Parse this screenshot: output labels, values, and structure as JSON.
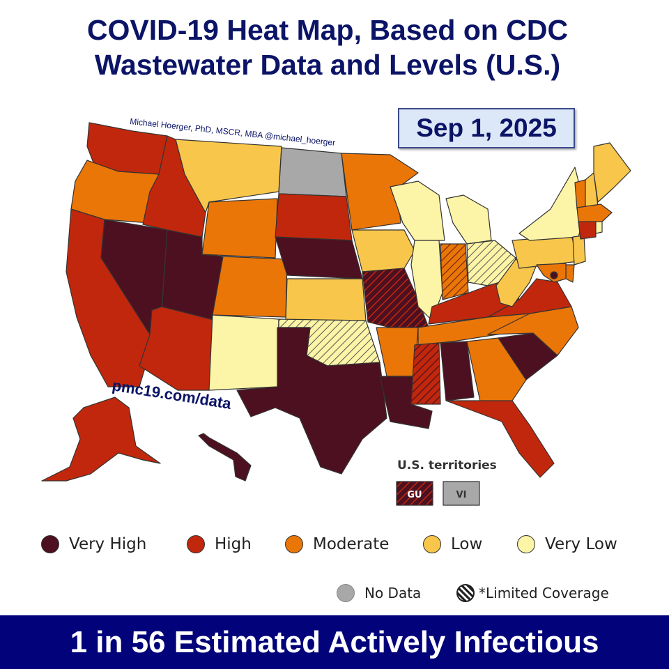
{
  "title_line1": "COVID-19 Heat Map, Based on CDC",
  "title_line2": "Wastewater Data and Levels (U.S.)",
  "date": "Sep 1, 2025",
  "credit": "Michael Hoerger, PhD, MSCR, MBA  @michael_hoerger",
  "website": "pmc19.com/data",
  "territories_label": "U.S. territories",
  "territories": [
    {
      "code": "GU",
      "level": "very_high",
      "limited": true
    },
    {
      "code": "VI",
      "level": "no_data",
      "limited": false
    }
  ],
  "legend": [
    {
      "label": "Very High",
      "color": "#4d1020"
    },
    {
      "label": "High",
      "color": "#c1270c"
    },
    {
      "label": "Moderate",
      "color": "#ea7608"
    },
    {
      "label": "Low",
      "color": "#f8c64a"
    },
    {
      "label": "Very Low",
      "color": "#fcf4a6"
    }
  ],
  "legend_extra": [
    {
      "label": "No Data",
      "color": "#a8a8a8"
    },
    {
      "label": "*Limited Coverage"
    }
  ],
  "banner": "1 in 56 Estimated Actively Infectious",
  "states": {
    "WA": "high",
    "OR": "moderate",
    "CA": "high",
    "NV": "very_high",
    "ID": "high",
    "MT": "low",
    "WY": "moderate",
    "UT": "very_high",
    "AZ": "high",
    "CO": "moderate",
    "NM": "very_low",
    "ND": "no_data",
    "SD": "high",
    "NE": "very_high",
    "KS": "low",
    "OK": "very_low*",
    "TX": "very_high",
    "MN": "moderate",
    "IA": "low",
    "MO": "very_high*",
    "AR": "moderate",
    "LA": "very_high",
    "WI": "very_low",
    "IL": "very_low",
    "MI": "very_low",
    "IN": "moderate*",
    "OH": "very_low*",
    "KY": "high",
    "TN": "moderate",
    "MS": "high*",
    "AL": "very_high",
    "GA": "moderate",
    "FL": "high",
    "SC": "very_high",
    "NC": "moderate",
    "VA": "high",
    "WV": "low",
    "PA": "low",
    "NY": "very_low",
    "VT": "moderate",
    "NH": "low",
    "ME": "low",
    "MA": "moderate",
    "CT": "high",
    "RI": "very_low",
    "NJ": "low",
    "DE": "moderate",
    "MD": "moderate",
    "DC": "very_high",
    "AK": "high",
    "HI": "very_high"
  }
}
